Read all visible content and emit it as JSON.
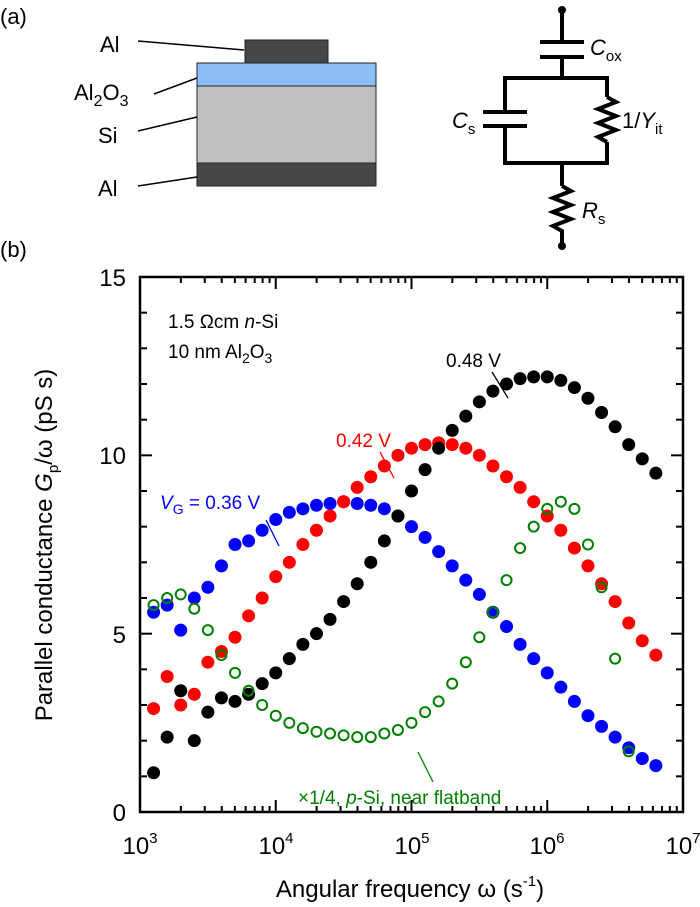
{
  "panel_a": {
    "panel_label": "(a)",
    "layers": {
      "top_contact": {
        "label": "Al",
        "color": "#474747"
      },
      "oxide": {
        "label_main": "Al",
        "label_sub1": "2",
        "label_mid": "O",
        "label_sub2": "3",
        "color": "#8bbdf7"
      },
      "substrate": {
        "label": "Si",
        "color": "#c0c0c0"
      },
      "bottom_contact": {
        "label": "Al",
        "color": "#474747"
      }
    },
    "circuit": {
      "c_ox": {
        "main": "C",
        "sub": "ox"
      },
      "c_s": {
        "main": "C",
        "sub": "s"
      },
      "y_it": {
        "prefix": "1/",
        "main": "Y",
        "sub": "it"
      },
      "r_s": {
        "main": "R",
        "sub": "s"
      }
    }
  },
  "panel_b": {
    "panel_label": "(b)"
  },
  "chart_data": {
    "type": "scatter",
    "xlabel": {
      "text": "Angular frequency ω (s",
      "sup": "-1",
      "end": ")"
    },
    "ylabel": {
      "text": "Parallel conductance ",
      "g": "G",
      "sub": "p",
      "rest": "/ω (pS s)"
    },
    "x_scale": "log",
    "xlim": [
      1000,
      10000000
    ],
    "ylim": [
      0,
      15
    ],
    "xticks": [
      {
        "base": "10",
        "exp": "3"
      },
      {
        "base": "10",
        "exp": "4"
      },
      {
        "base": "10",
        "exp": "5"
      },
      {
        "base": "10",
        "exp": "6"
      },
      {
        "base": "10",
        "exp": "7"
      }
    ],
    "yticks": [
      "0",
      "5",
      "10",
      "15"
    ],
    "grid": false,
    "annotations": {
      "sample_line1": {
        "a": "1.5 Ωcm ",
        "i": "n",
        "b": "-Si"
      },
      "sample_line2": {
        "a": "10 nm Al",
        "s1": "2",
        "b": "O",
        "s2": "3"
      }
    },
    "x": [
      1259,
      1585,
      1995,
      2512,
      3162,
      3981,
      5012,
      6310,
      7943,
      10000,
      12589,
      15849,
      19953,
      25119,
      31623,
      39811,
      50119,
      63096,
      79433,
      100000,
      125893,
      158489,
      199526,
      251189,
      316228,
      398107,
      501187,
      630957,
      794328,
      1000000,
      1258925,
      1584893,
      1995262,
      2511886,
      3162278,
      3981072,
      5011872,
      6309573
    ],
    "series": [
      {
        "key": "v036",
        "label": {
          "v": "V",
          "sub": "G",
          "rest": " = 0.36 V"
        },
        "color": "#0000ff",
        "marker": "filled-circle",
        "values": [
          5.6,
          5.8,
          5.1,
          6.0,
          6.3,
          6.9,
          7.5,
          7.6,
          7.9,
          8.2,
          8.4,
          8.5,
          8.6,
          8.65,
          8.7,
          8.65,
          8.6,
          8.5,
          8.3,
          8.0,
          7.7,
          7.3,
          6.9,
          6.5,
          6.1,
          5.6,
          5.2,
          4.7,
          4.3,
          3.9,
          3.5,
          3.1,
          2.7,
          2.4,
          2.1,
          1.8,
          1.5,
          1.3
        ]
      },
      {
        "key": "v042",
        "label": {
          "rest": "0.42 V"
        },
        "color": "#ff0000",
        "marker": "filled-circle",
        "values": [
          2.9,
          3.8,
          3.0,
          3.3,
          4.2,
          4.5,
          4.9,
          5.5,
          6.0,
          6.6,
          7.0,
          7.5,
          7.9,
          8.3,
          8.7,
          9.1,
          9.4,
          9.7,
          10.0,
          10.2,
          10.3,
          10.35,
          10.3,
          10.2,
          10.0,
          9.7,
          9.4,
          9.1,
          8.7,
          8.3,
          7.9,
          7.4,
          6.9,
          6.4,
          5.9,
          5.3,
          4.8,
          4.4
        ]
      },
      {
        "key": "v048",
        "label": {
          "rest": "0.48 V"
        },
        "color": "#000000",
        "marker": "filled-circle",
        "values": [
          1.1,
          2.1,
          3.4,
          2.0,
          2.8,
          3.2,
          3.1,
          3.3,
          3.6,
          3.9,
          4.3,
          4.7,
          5.0,
          5.4,
          5.9,
          6.4,
          7.0,
          7.6,
          8.3,
          9.0,
          9.6,
          10.2,
          10.7,
          11.1,
          11.5,
          11.8,
          12.0,
          12.15,
          12.2,
          12.2,
          12.1,
          11.9,
          11.6,
          11.2,
          10.8,
          10.3,
          9.9,
          9.5
        ]
      },
      {
        "key": "psi",
        "label": {
          "a": "×1/4, ",
          "i": "p",
          "b": "-Si, near flatband"
        },
        "color": "#008000",
        "marker": "open-circle",
        "values": [
          5.8,
          6.0,
          6.1,
          5.7,
          5.1,
          4.4,
          3.9,
          3.4,
          3.0,
          2.7,
          2.5,
          2.35,
          2.25,
          2.2,
          2.15,
          2.1,
          2.1,
          2.2,
          2.3,
          2.5,
          2.8,
          3.1,
          3.6,
          4.2,
          4.9,
          5.6,
          6.5,
          7.4,
          8.0,
          8.5,
          8.7,
          8.5,
          7.5,
          6.3,
          4.3,
          1.7,
          null,
          null
        ]
      }
    ]
  }
}
